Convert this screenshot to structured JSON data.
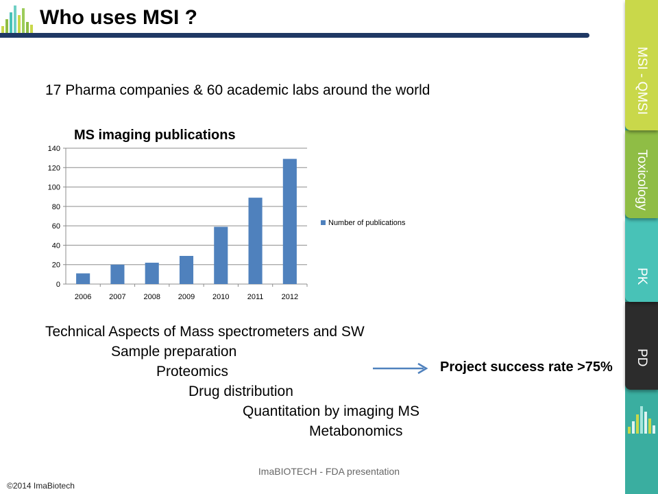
{
  "slide": {
    "title": "Who uses MSI ?",
    "subtitle": "17 Pharma companies & 60 academic labs around the world",
    "bullets": [
      "Technical Aspects of Mass spectrometers and SW",
      "Sample preparation",
      "Proteomics",
      "Drug distribution",
      "Quantitation by imaging MS",
      "Metabonomics"
    ],
    "success_text": "Project success rate >75%",
    "footer_center": "ImaBIOTECH - FDA presentation",
    "copyright": "©2014 ImaBiotech"
  },
  "sidebar": {
    "tabs": [
      "MSI - QMSI",
      "Toxicology",
      "PK",
      "PD"
    ]
  },
  "colors": {
    "title_rule": "#1f3864",
    "bar": "#4f81bd",
    "arrow": "#4f81bd",
    "tab_msi": "#c9d84a",
    "tab_tox": "#8fbd45",
    "tab_pk": "#48c2b7",
    "tab_pd": "#2c2c2c",
    "sidebar_bg": "#3aaea0"
  },
  "chart_data": {
    "type": "bar",
    "title": "MS imaging publications",
    "categories": [
      "2006",
      "2007",
      "2008",
      "2009",
      "2010",
      "2011",
      "2012"
    ],
    "series": [
      {
        "name": "Number of publications",
        "values": [
          11,
          20,
          22,
          29,
          59,
          89,
          129
        ]
      }
    ],
    "ylim": [
      0,
      140
    ],
    "yticks": [
      0,
      20,
      40,
      60,
      80,
      100,
      120,
      140
    ],
    "grid": true,
    "legend": "right"
  }
}
